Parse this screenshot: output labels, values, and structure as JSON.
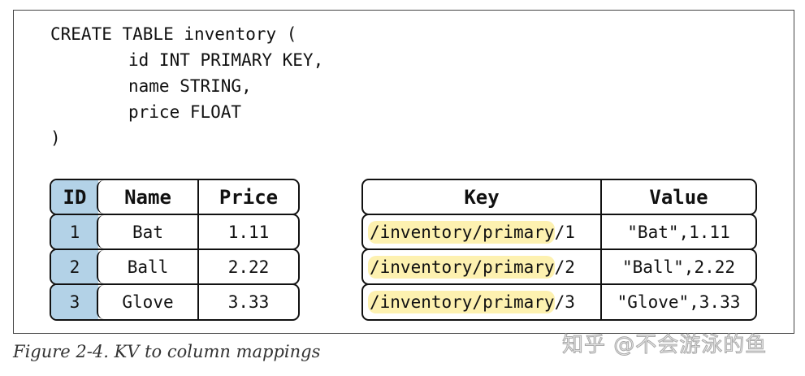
{
  "code": {
    "lines": [
      "CREATE TABLE inventory (",
      "id INT PRIMARY KEY,",
      "name STRING,",
      "price FLOAT",
      ")"
    ]
  },
  "column_table": {
    "headers": [
      "ID",
      "Name",
      "Price"
    ],
    "rows": [
      [
        "1",
        "Bat",
        "1.11"
      ],
      [
        "2",
        "Ball",
        "2.22"
      ],
      [
        "3",
        "Glove",
        "3.33"
      ]
    ],
    "id_color": "#b3d2e7"
  },
  "kv_table": {
    "headers": [
      "Key",
      "Value"
    ],
    "rows": [
      {
        "prefix": "/inventory/primary",
        "suffix": "/1",
        "value": "\"Bat\",1.11"
      },
      {
        "prefix": "/inventory/primary",
        "suffix": "/2",
        "value": "\"Ball\",2.22"
      },
      {
        "prefix": "/inventory/primary",
        "suffix": "/3",
        "value": "\"Glove\",3.33"
      }
    ],
    "highlight_color": "#fdf1b0"
  },
  "caption": "Figure 2-4. KV to column mappings",
  "watermark": "知乎 @不会游泳的鱼"
}
